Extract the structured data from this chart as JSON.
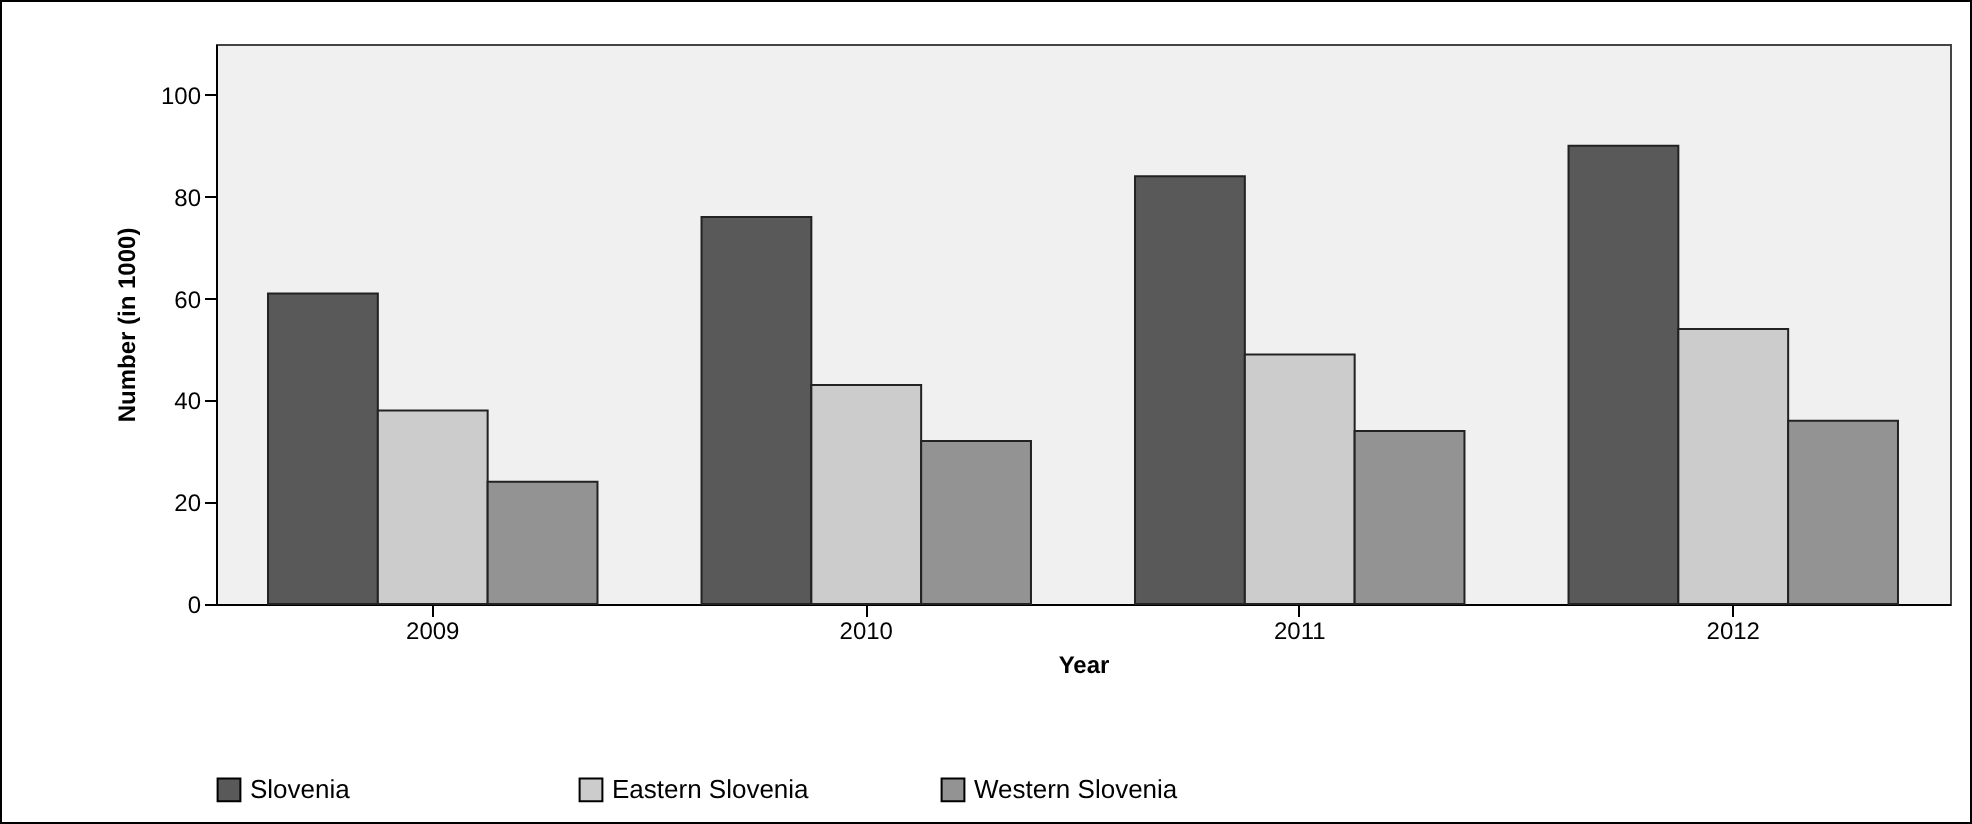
{
  "chart_data": {
    "type": "bar",
    "xlabel": "Year",
    "ylabel": "Number (in 1000)",
    "categories": [
      "2009",
      "2010",
      "2011",
      "2012"
    ],
    "series": [
      {
        "name": "Slovenia",
        "color": "#595959",
        "values": [
          61,
          76,
          84,
          90
        ]
      },
      {
        "name": "Eastern Slovenia",
        "color": "#cccccc",
        "values": [
          38,
          43,
          49,
          54
        ]
      },
      {
        "name": "Western Slovenia",
        "color": "#939393",
        "values": [
          24,
          32,
          34,
          36
        ]
      }
    ],
    "ylim": [
      0,
      110
    ],
    "yticks": [
      0,
      20,
      40,
      60,
      80,
      100
    ],
    "legend": "bottom"
  }
}
